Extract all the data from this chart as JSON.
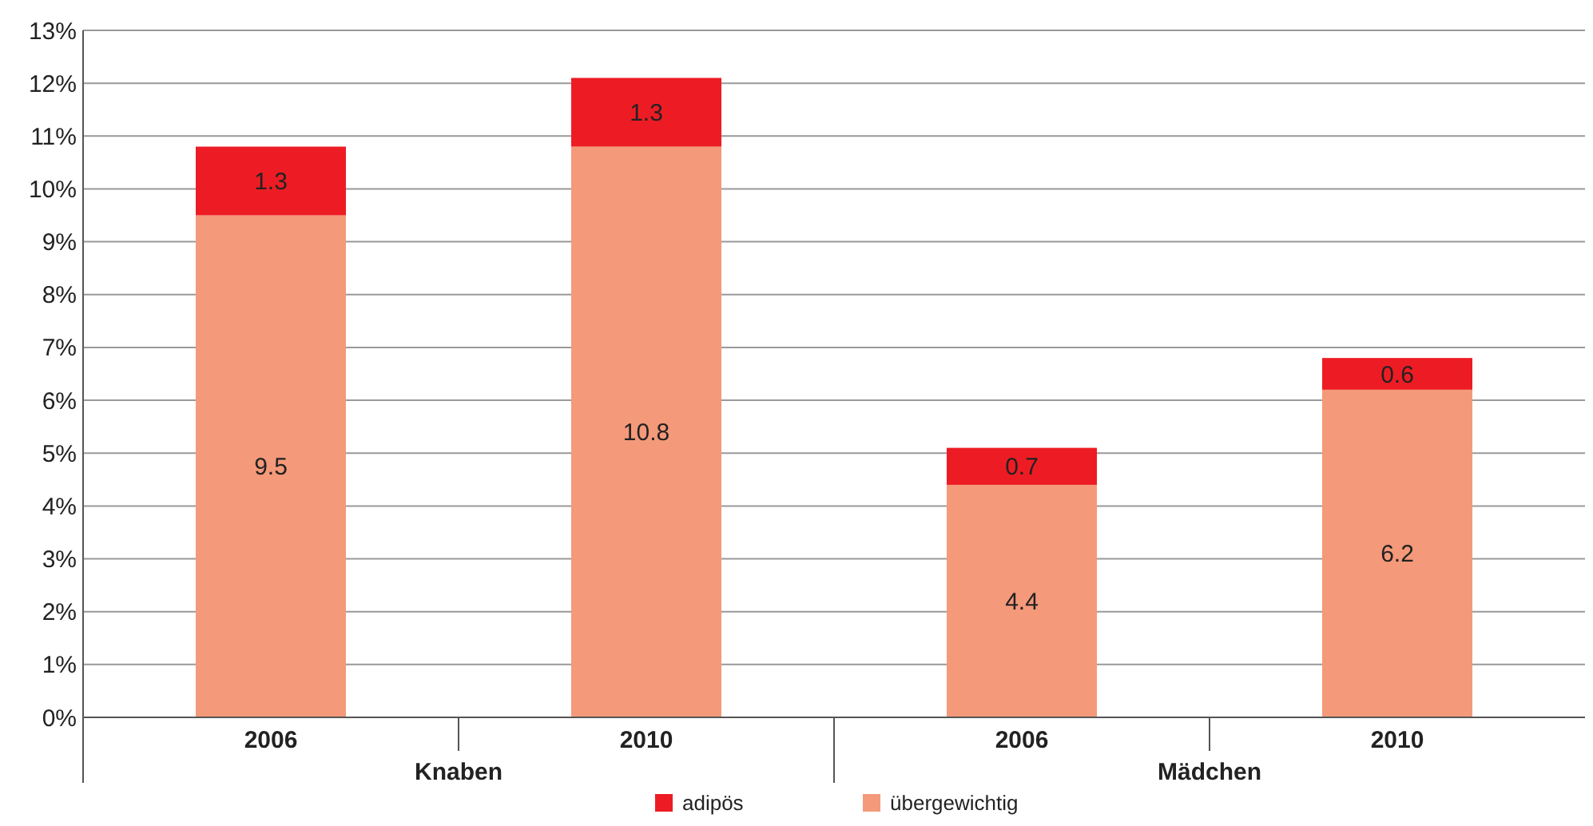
{
  "chart_data": {
    "type": "bar",
    "stacked": true,
    "categories": [
      "2006",
      "2010",
      "2006",
      "2010"
    ],
    "series": [
      {
        "name": "übergewichtig",
        "color": "#f4997a",
        "values": [
          9.5,
          10.8,
          4.4,
          6.2
        ]
      },
      {
        "name": "adipös",
        "color": "#ed1c24",
        "values": [
          1.3,
          1.3,
          0.7,
          0.6
        ]
      }
    ],
    "ylim": [
      0,
      13
    ],
    "yticks": [
      {
        "value": 0,
        "label": "0%"
      },
      {
        "value": 1,
        "label": "1%"
      },
      {
        "value": 2,
        "label": "2%"
      },
      {
        "value": 3,
        "label": "3%"
      },
      {
        "value": 4,
        "label": "4%"
      },
      {
        "value": 5,
        "label": "5%"
      },
      {
        "value": 6,
        "label": "6%"
      },
      {
        "value": 7,
        "label": "7%"
      },
      {
        "value": 8,
        "label": "8%"
      },
      {
        "value": 9,
        "label": "9%"
      },
      {
        "value": 10,
        "label": "10%"
      },
      {
        "value": 11,
        "label": "11%"
      },
      {
        "value": 12,
        "label": "12%"
      },
      {
        "value": 13,
        "label": "13%"
      }
    ],
    "grid": "y",
    "data_labels": true,
    "legend": "bottom",
    "annotations": [
      "Knaben",
      "Mädchen"
    ]
  }
}
